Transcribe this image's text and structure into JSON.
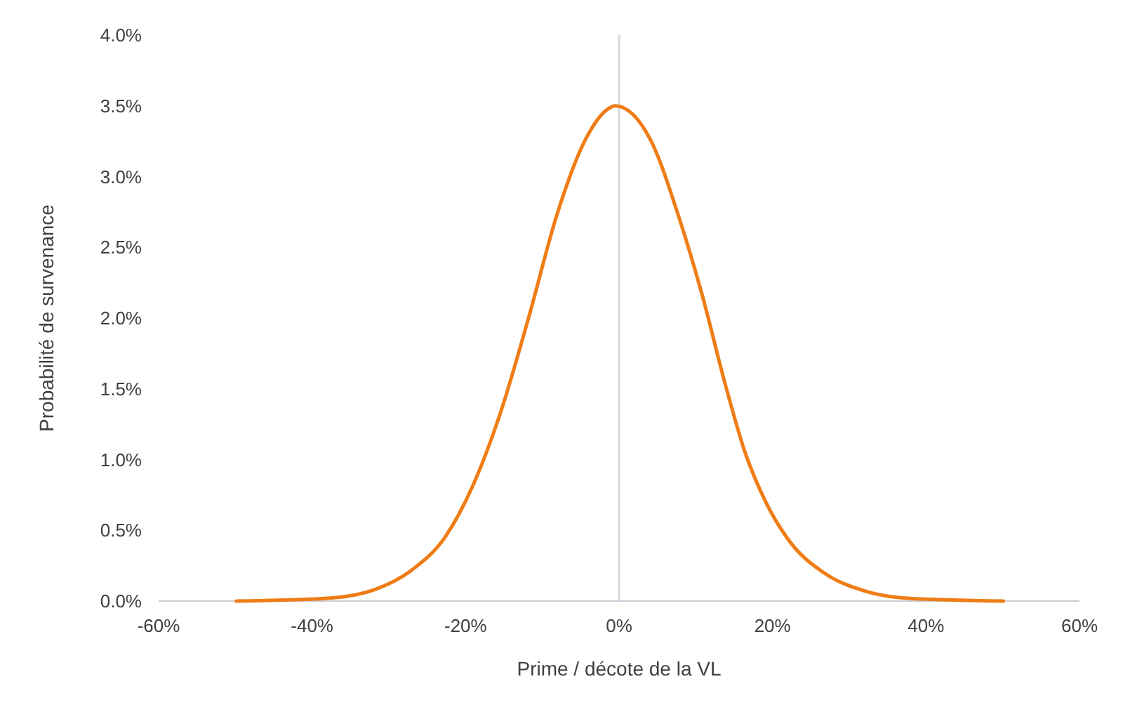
{
  "chart_data": {
    "type": "line",
    "xlabel": "Prime / décote de la VL",
    "ylabel": "Probabilité de survenance",
    "x": [
      -49.9,
      -38,
      -31.9,
      -27,
      -22.7,
      -19.1,
      -15.4,
      -11.8,
      -8.1,
      -4.4,
      -1.4,
      -0.5,
      4.1,
      7.7,
      10.8,
      13.8,
      16.3,
      19.3,
      22.4,
      26.7,
      32.1,
      37.6,
      50.1
    ],
    "series": [
      {
        "color": "#ef7d16",
        "values": [
          0,
          0.02,
          0.08,
          0.22,
          0.45,
          0.81,
          1.34,
          2.0,
          2.73,
          3.26,
          3.48,
          3.5,
          3.26,
          2.73,
          2.17,
          1.54,
          1.07,
          0.68,
          0.41,
          0.2,
          0.07,
          0.02,
          0
        ]
      }
    ],
    "xlim": [
      -60,
      60
    ],
    "ylim": [
      0,
      4
    ],
    "xticks": [
      {
        "value": -60,
        "label": "-60%"
      },
      {
        "value": -40,
        "label": "-40%"
      },
      {
        "value": -20,
        "label": "-20%"
      },
      {
        "value": 0,
        "label": "0%"
      },
      {
        "value": 20,
        "label": "20%"
      },
      {
        "value": 40,
        "label": "40%"
      },
      {
        "value": 60,
        "label": "60%"
      }
    ],
    "yticks": [
      {
        "value": 0,
        "label": "0.0%"
      },
      {
        "value": 0.5,
        "label": "0.5%"
      },
      {
        "value": 1,
        "label": "1.0%"
      },
      {
        "value": 1.5,
        "label": "1.5%"
      },
      {
        "value": 2,
        "label": "2.0%"
      },
      {
        "value": 2.5,
        "label": "2.5%"
      },
      {
        "value": 3,
        "label": "3.0%"
      },
      {
        "value": 3.5,
        "label": "3.5%"
      },
      {
        "value": 4,
        "label": "4.0%"
      }
    ],
    "ref_lines": [
      {
        "axis": "x",
        "value": 0,
        "color": "#d5d8dd"
      }
    ],
    "grid": false,
    "marker": "none",
    "line_style": "solid"
  }
}
